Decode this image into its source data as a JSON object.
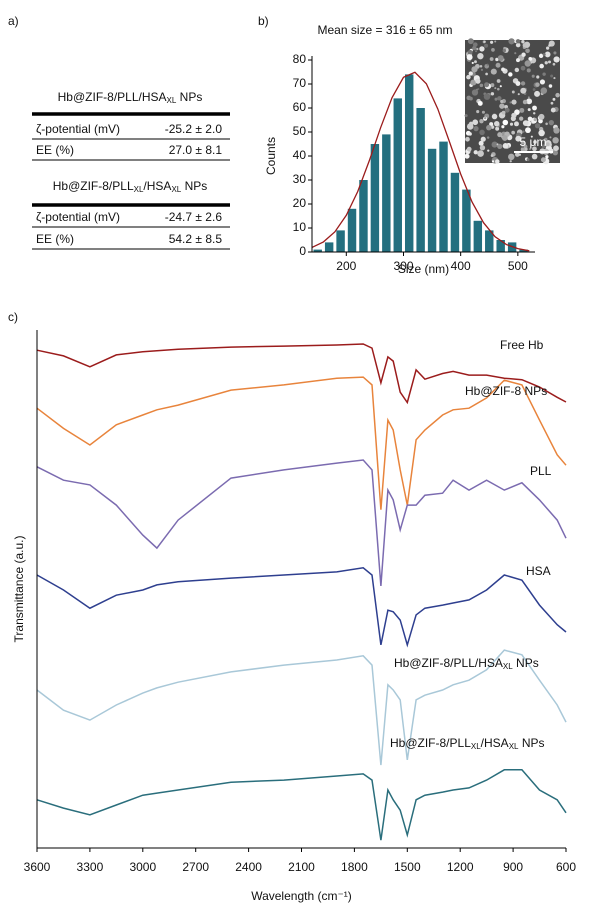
{
  "panel_labels": [
    "a)",
    "b)",
    "c)"
  ],
  "table": {
    "blocks": [
      {
        "header": [
          "Hb@ZIF-8/PLL/HSA",
          "XL",
          " NPs"
        ],
        "rows": [
          [
            "ζ-potential (mV)",
            "-25.2 ± 2.0"
          ],
          [
            "EE (%)",
            "27.0 ± 8.1"
          ]
        ]
      },
      {
        "header": [
          "Hb@ZIF-8/PLL",
          "XL",
          "/HSA",
          "XL",
          " NPs"
        ],
        "rows": [
          [
            "ζ-potential (mV)",
            "-24.7 ± 2.6"
          ],
          [
            "EE (%)",
            "54.2 ± 8.5"
          ]
        ]
      }
    ]
  },
  "chart_data": [
    {
      "type": "histogram",
      "title": "Mean size = 316 ± 65 nm",
      "xlabel": "Size (nm)",
      "ylabel": "Counts",
      "bins": [
        140,
        160,
        180,
        200,
        220,
        240,
        260,
        280,
        300,
        320,
        340,
        360,
        380,
        400,
        420,
        440,
        460,
        480,
        500,
        520
      ],
      "counts": [
        1,
        4,
        9,
        18,
        30,
        45,
        49,
        64,
        74,
        60,
        43,
        46,
        33,
        26,
        13,
        9,
        5,
        4,
        1
      ],
      "color": "#236f7f",
      "xlim": [
        140,
        530
      ],
      "ylim": [
        0,
        80
      ],
      "xticks": [
        200,
        300,
        400,
        500
      ],
      "yticks": [
        0,
        10,
        20,
        30,
        40,
        50,
        60,
        70,
        80
      ],
      "fit": {
        "color": "#9b1c1c",
        "x": [
          140,
          160,
          180,
          200,
          220,
          240,
          260,
          280,
          300,
          320,
          340,
          360,
          380,
          400,
          420,
          440,
          460,
          480,
          500,
          520
        ],
        "values": [
          1.9,
          4.2,
          8.4,
          15.3,
          25.2,
          37.9,
          51.8,
          64.3,
          72.8,
          74.9,
          70.1,
          59.6,
          46.2,
          32.5,
          20.8,
          12.2,
          6.4,
          3.1,
          1.4,
          0.5
        ]
      },
      "inset": {
        "scale_bar": "5 μm"
      }
    },
    {
      "type": "line",
      "xlabel": "Wavelength (cm⁻¹)",
      "ylabel": "Transmittance (a.u.)",
      "xlim": [
        3600,
        600
      ],
      "ylim": [
        0,
        100
      ],
      "xticks": [
        3600,
        3300,
        3000,
        2700,
        2400,
        2100,
        1800,
        1500,
        1200,
        900,
        600
      ],
      "x": [
        3600,
        3450,
        3300,
        3150,
        3000,
        2920,
        2800,
        2500,
        2200,
        1900,
        1750,
        1700,
        1650,
        1610,
        1580,
        1540,
        1500,
        1450,
        1400,
        1300,
        1240,
        1150,
        1050,
        950,
        850,
        750,
        650,
        600
      ],
      "series": [
        {
          "name": [
            "Free Hb"
          ],
          "color": "#9b1c1c",
          "values": [
            96.1,
            95.0,
            92.9,
            95.2,
            95.8,
            96.0,
            96.3,
            96.7,
            96.9,
            97.1,
            97.3,
            96.5,
            89.8,
            94.8,
            94.0,
            88.0,
            86.0,
            92.3,
            90.5,
            91.6,
            92.0,
            91.3,
            91.3,
            90.7,
            90.4,
            89.0,
            87.0,
            86.1
          ]
        },
        {
          "name": [
            "Hb@ZIF-8 NPs"
          ],
          "color": "#e8843c",
          "values": [
            84.9,
            81.0,
            77.8,
            81.7,
            83.6,
            84.6,
            85.5,
            88.4,
            89.4,
            90.7,
            90.9,
            89.4,
            65.3,
            82.6,
            80.7,
            73.0,
            66.2,
            78.8,
            80.7,
            83.6,
            84.6,
            84.9,
            86.9,
            90.3,
            89.4,
            82.6,
            75.9,
            73.9
          ]
        },
        {
          "name": [
            "PLL"
          ],
          "color": "#7b6bb0",
          "values": [
            73.6,
            71.0,
            70.1,
            66.2,
            60.4,
            57.9,
            63.3,
            71.4,
            73.0,
            74.3,
            74.9,
            73.0,
            50.6,
            69.1,
            67.2,
            61.4,
            66.2,
            66.2,
            68.1,
            68.5,
            71.0,
            69.1,
            71.0,
            69.1,
            70.5,
            67.2,
            63.3,
            59.8
          ]
        },
        {
          "name": [
            "HSA"
          ],
          "color": "#2e3f8f",
          "values": [
            52.7,
            49.8,
            46.3,
            48.8,
            49.8,
            50.8,
            51.4,
            52.1,
            52.7,
            53.3,
            54.1,
            52.7,
            39.2,
            45.9,
            45.6,
            44.0,
            39.2,
            45.0,
            46.3,
            46.9,
            47.3,
            47.9,
            49.8,
            52.7,
            51.7,
            46.9,
            43.1,
            41.7
          ]
        },
        {
          "name": [
            "Hb@ZIF-8/PLL/HSA",
            "XL",
            " NPs"
          ],
          "color": "#a9c8d8",
          "values": [
            30.5,
            26.6,
            24.7,
            27.6,
            29.9,
            30.9,
            32.0,
            34.0,
            35.3,
            36.3,
            37.1,
            35.3,
            16.0,
            31.5,
            30.5,
            28.6,
            17.0,
            28.6,
            29.5,
            30.5,
            31.5,
            32.4,
            34.4,
            38.2,
            37.3,
            32.4,
            27.6,
            24.3
          ]
        },
        {
          "name": [
            "Hb@ZIF-8/PLL",
            "XL",
            "/HSA",
            "XL",
            " NPs"
          ],
          "color": "#2a6e7c",
          "values": [
            9.3,
            7.7,
            6.4,
            8.3,
            10.2,
            10.6,
            11.2,
            12.7,
            13.1,
            13.9,
            14.3,
            13.1,
            1.5,
            11.2,
            9.3,
            7.3,
            2.5,
            9.3,
            10.2,
            10.8,
            11.2,
            11.6,
            13.1,
            15.1,
            15.1,
            11.2,
            9.3,
            6.8
          ]
        }
      ]
    }
  ]
}
